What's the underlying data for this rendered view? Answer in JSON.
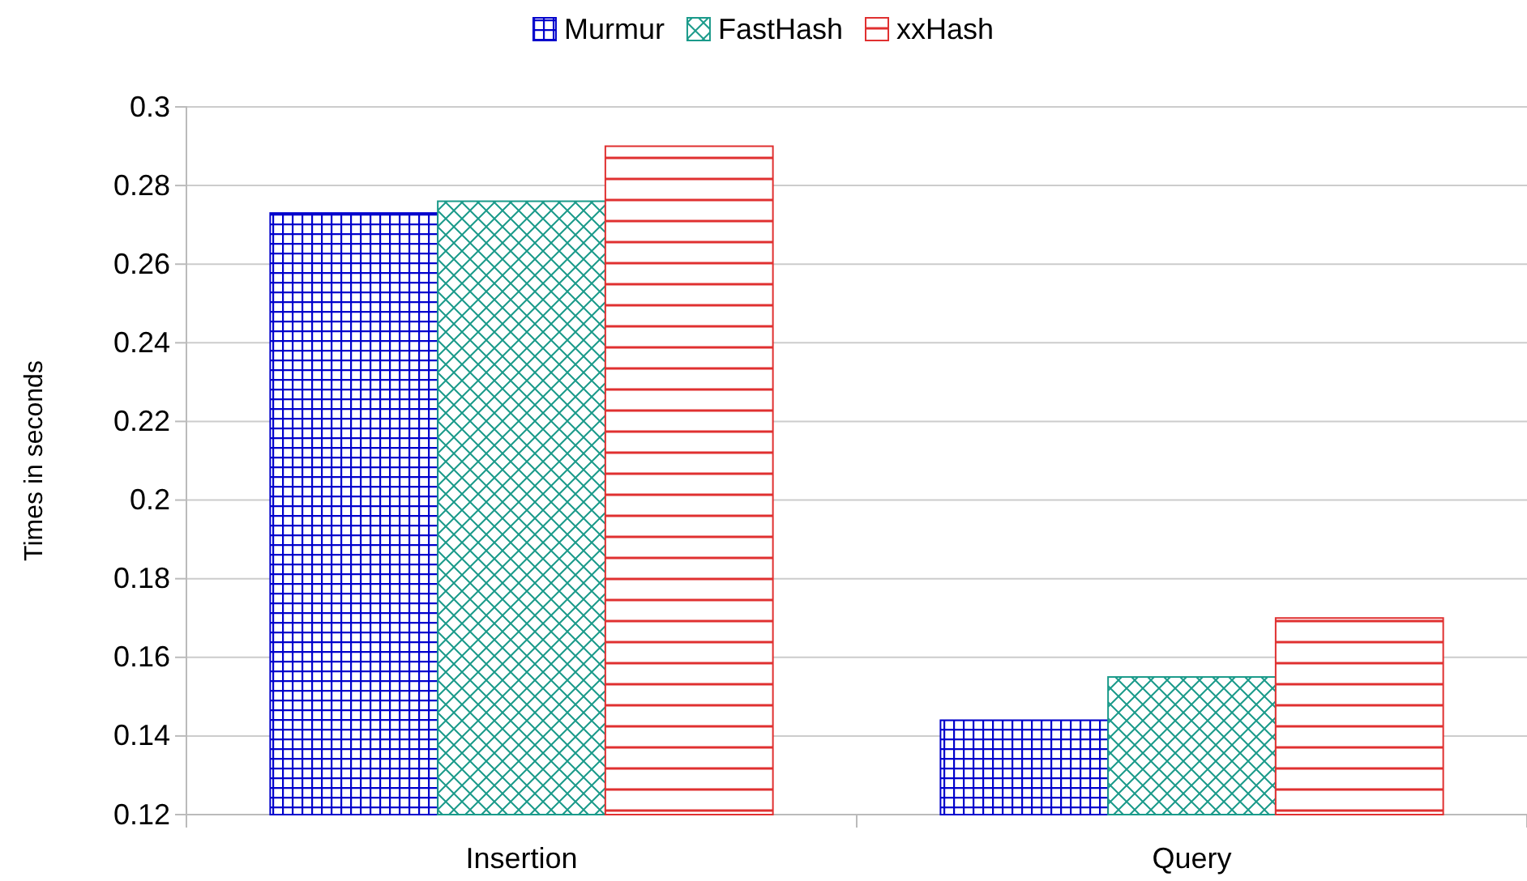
{
  "chart_data": {
    "type": "bar",
    "categories": [
      "Insertion",
      "Query"
    ],
    "ylabel": "Times in seconds",
    "ylim": [
      0.12,
      0.3
    ],
    "yticks": [
      0.12,
      0.14,
      0.16,
      0.18,
      0.2,
      0.22,
      0.24,
      0.26,
      0.28,
      0.3
    ],
    "grid": "y",
    "legend": "top",
    "series": [
      {
        "name": "Murmur",
        "color": "#0000cc",
        "values": [
          0.273,
          0.144
        ]
      },
      {
        "name": "FastHash",
        "color": "#1a9a8a",
        "values": [
          0.276,
          0.155
        ]
      },
      {
        "name": "xxHash",
        "color": "#e03030",
        "values": [
          0.29,
          0.17
        ]
      }
    ]
  }
}
